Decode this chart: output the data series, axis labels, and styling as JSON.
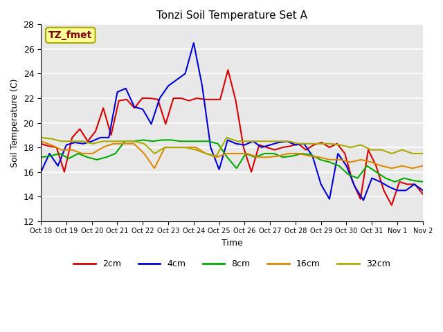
{
  "title": "Tonzi Soil Temperature Set A",
  "xlabel": "Time",
  "ylabel": "Soil Temperature (C)",
  "annotation": "TZ_fmet",
  "ylim": [
    12,
    28
  ],
  "yticks": [
    12,
    14,
    16,
    18,
    20,
    22,
    24,
    26,
    28
  ],
  "x_labels": [
    "Oct 18",
    "Oct 19",
    "Oct 20",
    "Oct 21",
    "Oct 22",
    "Oct 23",
    "Oct 24",
    "Oct 25",
    "Oct 26",
    "Oct 27",
    "Oct 28",
    "Oct 29",
    "Oct 30",
    "Oct 31",
    "Nov 1",
    "Nov 2"
  ],
  "n_days": 16,
  "pts_per_day": 2,
  "series": {
    "2cm": {
      "color": "#dd0000",
      "linewidth": 1.5,
      "values": [
        18.3,
        18.1,
        18.0,
        16.0,
        18.8,
        19.5,
        18.5,
        19.3,
        21.2,
        19.0,
        21.8,
        21.9,
        21.2,
        22.0,
        22.0,
        21.9,
        19.9,
        22.0,
        22.0,
        21.8,
        22.0,
        21.9,
        21.9,
        21.9,
        24.3,
        21.8,
        18.0,
        16.0,
        18.2,
        18.0,
        17.8,
        18.0,
        18.1,
        18.3,
        17.8,
        18.2,
        18.4,
        18.0,
        18.3,
        17.5,
        15.2,
        13.8,
        17.8,
        16.5,
        14.5,
        13.3,
        15.2,
        15.0,
        15.0,
        14.2
      ]
    },
    "4cm": {
      "color": "#0000dd",
      "linewidth": 1.5,
      "values": [
        16.0,
        17.5,
        16.5,
        18.2,
        18.4,
        18.3,
        18.5,
        18.8,
        18.8,
        22.5,
        22.8,
        21.3,
        21.1,
        19.9,
        22.0,
        23.0,
        23.5,
        24.0,
        26.5,
        23.0,
        18.0,
        16.2,
        18.6,
        18.3,
        18.2,
        18.5,
        18.0,
        18.2,
        18.4,
        18.5,
        18.2,
        18.3,
        17.3,
        15.0,
        13.8,
        17.5,
        16.5,
        14.8,
        13.7,
        15.5,
        15.2,
        14.8,
        14.5,
        14.5,
        15.0,
        14.5
      ]
    },
    "8cm": {
      "color": "#00aa00",
      "linewidth": 1.5,
      "values": [
        17.2,
        17.3,
        17.5,
        17.1,
        17.5,
        17.2,
        17.0,
        17.2,
        17.5,
        18.5,
        18.5,
        18.6,
        18.5,
        18.6,
        18.6,
        18.5,
        18.5,
        18.5,
        18.5,
        18.3,
        17.2,
        16.3,
        17.5,
        17.2,
        17.5,
        17.5,
        17.2,
        17.3,
        17.5,
        17.4,
        17.0,
        16.8,
        16.5,
        15.8,
        15.5,
        16.5,
        16.0,
        15.5,
        15.2,
        15.5,
        15.3,
        15.2
      ]
    },
    "16cm": {
      "color": "#dd8800",
      "linewidth": 1.5,
      "values": [
        18.5,
        18.2,
        17.8,
        17.8,
        17.5,
        17.5,
        18.0,
        18.3,
        18.3,
        18.3,
        17.5,
        16.3,
        18.0,
        18.0,
        18.0,
        18.0,
        17.5,
        17.2,
        17.5,
        17.5,
        17.5,
        17.2,
        17.2,
        17.3,
        17.5,
        17.5,
        17.3,
        17.2,
        17.0,
        17.0,
        16.8,
        17.0,
        16.8,
        16.5,
        16.3,
        16.5,
        16.3,
        16.5
      ]
    },
    "32cm": {
      "color": "#aaaa00",
      "linewidth": 1.5,
      "values": [
        18.8,
        18.7,
        18.5,
        18.5,
        18.5,
        18.3,
        18.5,
        18.5,
        18.5,
        18.5,
        18.3,
        17.5,
        18.0,
        18.0,
        18.0,
        17.8,
        17.5,
        17.3,
        18.8,
        18.5,
        18.5,
        18.5,
        18.5,
        18.5,
        18.5,
        18.3,
        18.3,
        18.3,
        18.3,
        18.2,
        18.0,
        18.2,
        17.8,
        17.8,
        17.5,
        17.8,
        17.5,
        17.5
      ]
    }
  },
  "bg_color": "#e8e8e8",
  "grid_color": "#ffffff",
  "annotation_bg": "#ffff99",
  "annotation_border": "#aaaa00",
  "annotation_text_color": "#880000",
  "legend_items": [
    "2cm",
    "4cm",
    "8cm",
    "16cm",
    "32cm"
  ],
  "legend_colors": [
    "#dd0000",
    "#0000dd",
    "#00aa00",
    "#dd8800",
    "#aaaa00"
  ]
}
